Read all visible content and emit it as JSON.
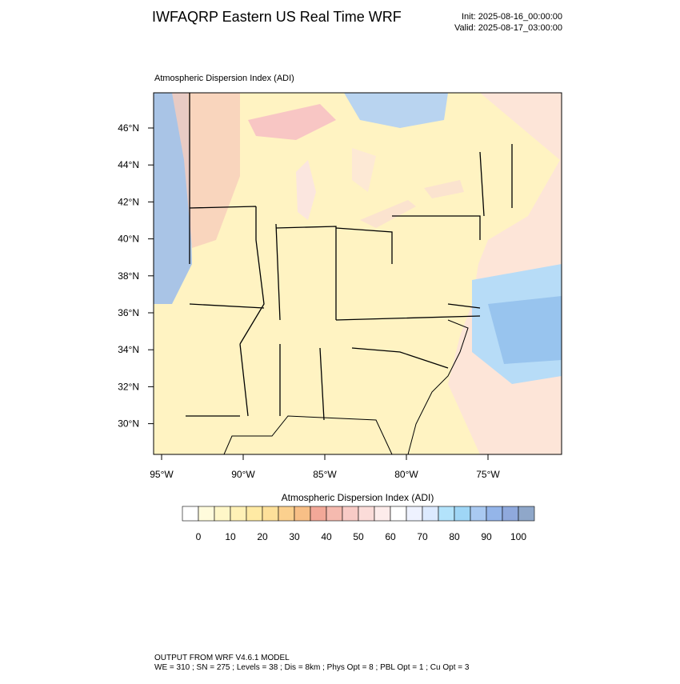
{
  "header": {
    "title": "IWFAQRP Eastern US Real Time WRF",
    "init": "Init: 2025-08-16_00:00:00",
    "valid": "Valid: 2025-08-17_03:00:00"
  },
  "map": {
    "title": "Atmospheric Dispersion Index   (ADI)",
    "lat_ticks": [
      {
        "value": 46,
        "label": "46°N"
      },
      {
        "value": 44,
        "label": "44°N"
      },
      {
        "value": 42,
        "label": "42°N"
      },
      {
        "value": 40,
        "label": "40°N"
      },
      {
        "value": 38,
        "label": "38°N"
      },
      {
        "value": 36,
        "label": "36°N"
      },
      {
        "value": 34,
        "label": "34°N"
      },
      {
        "value": 32,
        "label": "32°N"
      },
      {
        "value": 30,
        "label": "30°N"
      }
    ],
    "lon_ticks": [
      {
        "value": -95,
        "label": "95°W"
      },
      {
        "value": -90,
        "label": "90°W"
      },
      {
        "value": -85,
        "label": "85°W"
      },
      {
        "value": -80,
        "label": "80°W"
      },
      {
        "value": -75,
        "label": "75°W"
      }
    ]
  },
  "colorbar": {
    "title": "Atmospheric Dispersion Index  (ADI)",
    "colors": [
      "#ffffff",
      "#fffbdc",
      "#fff7c8",
      "#fff1b6",
      "#ffeaa4",
      "#fde09a",
      "#fbd08e",
      "#f8bf86",
      "#f2a898",
      "#f5baaf",
      "#f8cbc6",
      "#fbdcd9",
      "#fdeceb",
      "#ffffff",
      "#eef2ff",
      "#dceaff",
      "#b3e3fb",
      "#9fd6f6",
      "#a9c9f1",
      "#94b5e9",
      "#8fa9dd",
      "#8fa7c9"
    ],
    "ticks": [
      0,
      10,
      20,
      30,
      40,
      50,
      60,
      70,
      80,
      90,
      100
    ]
  },
  "footer": {
    "line1": "OUTPUT FROM WRF V4.6.1 MODEL",
    "line2": "WE = 310 ; SN = 275 ; Levels = 38 ; Dis = 8km ; Phys Opt = 8 ; PBL Opt = 1 ; Cu Opt = 3"
  }
}
